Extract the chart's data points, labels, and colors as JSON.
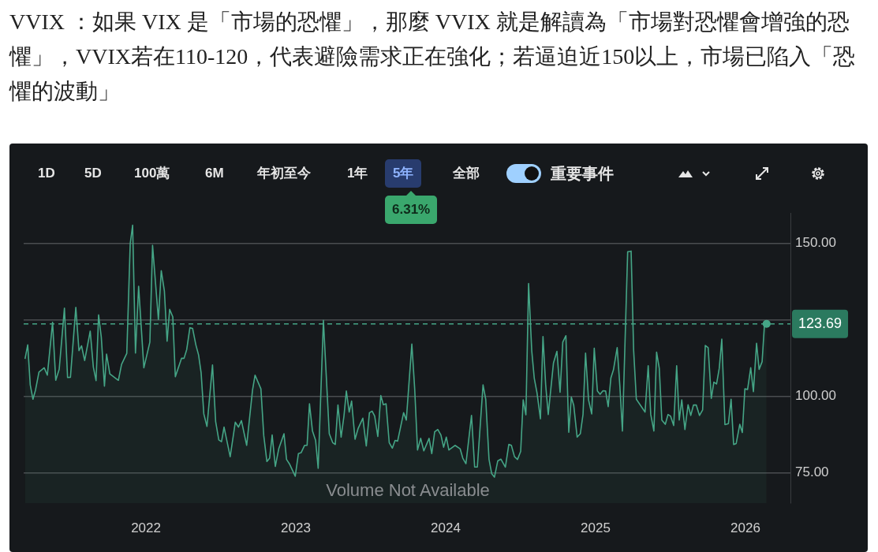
{
  "chart_data": {
    "type": "area",
    "title": "VVIX ：如果 VIX 是「市場的恐懼」，那麼 VVIX 就是解讀為「市場對恐懼會增強的恐懼」，VVIX若在110-120，代表避險需求正在強化；若逼迫近150以上，市場已陷入「恐懼的波動」",
    "color": "#45a586",
    "x": [
      2021.193,
      2021.211,
      2021.228,
      2021.246,
      2021.263,
      2021.286,
      2021.321,
      2021.342,
      2021.377,
      2021.398,
      2021.421,
      2021.456,
      2021.477,
      2021.496,
      2021.532,
      2021.553,
      2021.57,
      2021.591,
      2021.628,
      2021.649,
      2021.667,
      2021.684,
      2021.702,
      2021.723,
      2021.737,
      2021.759,
      2021.816,
      2021.837,
      2021.872,
      2021.895,
      2021.911,
      2021.93,
      2021.951,
      2021.986,
      2022.026,
      2022.044,
      2022.083,
      2022.102,
      2022.123,
      2022.141,
      2022.158,
      2022.179,
      2022.196,
      2022.237,
      2022.254,
      2022.272,
      2022.293,
      2022.311,
      2022.333,
      2022.351,
      2022.368,
      2022.386,
      2022.407,
      2022.444,
      2022.465,
      2022.486,
      2022.504,
      2022.521,
      2022.562,
      2022.596,
      2022.617,
      2022.637,
      2022.672,
      2022.711,
      2022.728,
      2022.767,
      2022.786,
      2022.807,
      2022.825,
      2022.842,
      2022.863,
      2022.886,
      2022.921,
      2022.938,
      2022.959,
      2022.996,
      2023.017,
      2023.035,
      2023.058,
      2023.075,
      2023.091,
      2023.111,
      2023.132,
      2023.149,
      2023.184,
      2023.223,
      2023.246,
      2023.263,
      2023.281,
      2023.302,
      2023.321,
      2023.337,
      2023.356,
      2023.372,
      2023.395,
      2023.416,
      2023.447,
      2023.47,
      2023.491,
      2023.509,
      2023.526,
      2023.547,
      2023.567,
      2023.584,
      2023.602,
      2023.623,
      2023.644,
      2023.662,
      2023.679,
      2023.719,
      2023.737,
      2023.774,
      2023.793,
      2023.812,
      2023.833,
      2023.854,
      2023.889,
      2023.907,
      2023.926,
      2023.947,
      2023.968,
      2023.986,
      2024.004,
      2024.021,
      2024.062,
      2024.096,
      2024.114,
      2024.135,
      2024.172,
      2024.193,
      2024.211,
      2024.249,
      2024.267,
      2024.289,
      2024.307,
      2024.325,
      2024.347,
      2024.368,
      2024.398,
      2024.421,
      2024.438,
      2024.459,
      2024.479,
      2024.5,
      2024.517,
      2024.535,
      2024.553,
      2024.574,
      2024.591,
      2024.609,
      2024.632,
      2024.649,
      2024.667,
      2024.684,
      2024.719,
      2024.742,
      2024.763,
      2024.781,
      2024.802,
      2024.821,
      2024.838,
      2024.854,
      2024.877,
      2024.898,
      2024.916,
      2024.933,
      2024.953,
      2024.974,
      2024.991,
      2025.012,
      2025.03,
      2025.049,
      2025.067,
      2025.084,
      2025.102,
      2025.119,
      2025.144,
      2025.162,
      2025.179,
      2025.214,
      2025.237,
      2025.254,
      2025.272,
      2025.33,
      2025.351,
      2025.368,
      2025.389,
      2025.407,
      2025.425,
      2025.442,
      2025.465,
      2025.483,
      2025.5,
      2025.521,
      2025.541,
      2025.558,
      2025.575,
      2025.596,
      2025.617,
      2025.635,
      2025.653,
      2025.672,
      2025.693,
      2025.714,
      2025.732,
      2025.751,
      2025.772,
      2025.789,
      2025.807,
      2025.825,
      2025.842,
      2025.863,
      2025.886,
      2025.904,
      2025.921,
      2025.938,
      2025.962,
      2025.979,
      2025.996,
      2026.014,
      2026.035,
      2026.053,
      2026.074,
      2026.091,
      2026.111,
      2026.126,
      2026.141
    ],
    "values": [
      112.2,
      116.8,
      103.7,
      99.0,
      102.0,
      107.9,
      109.3,
      106.9,
      124.2,
      105.2,
      108.8,
      128.8,
      106.1,
      106.2,
      129.1,
      114.9,
      116.5,
      111.7,
      121.3,
      109.5,
      105.1,
      126.6,
      119.3,
      103.3,
      113.8,
      107.3,
      105.2,
      110.4,
      114.0,
      150.0,
      156.0,
      114.1,
      136.0,
      109.3,
      117.7,
      149.4,
      125.1,
      141.1,
      134.4,
      118.0,
      128.4,
      126.0,
      106.4,
      112.4,
      112.4,
      115.3,
      122.4,
      122.2,
      116.8,
      113.5,
      107.7,
      94.2,
      90.1,
      110.2,
      91.7,
      85.7,
      85.1,
      89.9,
      80.2,
      91.5,
      89.9,
      92.0,
      83.9,
      102.0,
      106.9,
      102.4,
      87.1,
      78.6,
      79.7,
      87.3,
      77.0,
      82.8,
      87.7,
      79.3,
      77.7,
      73.8,
      81.2,
      81.5,
      83.9,
      83.9,
      97.5,
      88.6,
      85.5,
      76.4,
      124.8,
      87.7,
      84.8,
      84.2,
      97.1,
      86.6,
      93.5,
      101.7,
      94.8,
      98.4,
      85.9,
      89.5,
      92.8,
      83.7,
      94.6,
      95.1,
      93.5,
      86.8,
      100.2,
      97.2,
      97.5,
      84.8,
      83.0,
      85.5,
      85.3,
      94.6,
      92.2,
      117.1,
      102.4,
      82.4,
      86.2,
      82.1,
      86.2,
      81.2,
      88.3,
      89.1,
      87.3,
      83.3,
      86.6,
      82.4,
      83.9,
      82.8,
      79.7,
      77.9,
      93.7,
      76.8,
      76.8,
      103.7,
      99.0,
      79.3,
      74.6,
      73.5,
      78.8,
      79.4,
      76.8,
      84.2,
      83.9,
      80.2,
      79.3,
      81.9,
      98.8,
      93.9,
      136.9,
      114.9,
      105.8,
      101.1,
      92.6,
      119.5,
      103.7,
      94.0,
      110.9,
      114.7,
      101.3,
      117.7,
      119.8,
      88.2,
      99.7,
      97.1,
      86.6,
      87.7,
      94.0,
      114.1,
      98.8,
      94.2,
      115.7,
      101.7,
      100.6,
      101.8,
      101.7,
      96.6,
      106.0,
      108.6,
      115.9,
      103.3,
      88.6,
      147.3,
      147.5,
      114.9,
      99.0,
      94.8,
      110.0,
      94.0,
      88.6,
      114.4,
      109.1,
      92.2,
      90.8,
      94.0,
      93.5,
      90.4,
      110.0,
      92.2,
      98.8,
      89.1,
      97.2,
      93.7,
      97.1,
      97.1,
      93.7,
      95.5,
      116.6,
      115.9,
      99.3,
      104.6,
      104.0,
      109.1,
      118.7,
      90.7,
      91.0,
      99.0,
      84.2,
      84.5,
      90.8,
      88.1,
      102.4,
      102.2,
      109.3,
      101.5,
      117.3,
      108.8,
      111.3,
      122.9,
      123.69
    ],
    "xlim": [
      2021.184,
      2026.3
    ],
    "xticks": [
      2022,
      2023,
      2024,
      2025,
      2026
    ],
    "ylim": [
      65,
      160
    ],
    "yticks": [
      {
        "value": 75,
        "label": "75.00"
      },
      {
        "value": 100,
        "label": "100.00"
      },
      {
        "value": 125,
        "label": null
      },
      {
        "value": 150,
        "label": "150.00"
      }
    ],
    "grid": "y",
    "ref_lines": [
      {
        "axis": "y",
        "value": 123.69,
        "label": "123.69",
        "color": "#45a586",
        "line_style": "dashed"
      }
    ],
    "annotations": [
      "1D",
      "5D",
      "100萬",
      "6M",
      "年初至今",
      "1年",
      "5年",
      "全部",
      "重要事件",
      "6.31%",
      "Volume Not Available"
    ]
  }
}
